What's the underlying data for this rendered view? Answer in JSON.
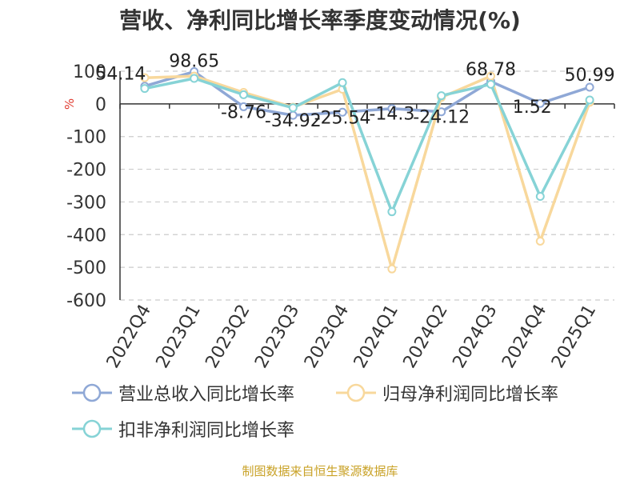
{
  "chart_data": {
    "type": "line",
    "title": "营收、净利同比增长率季度变动情况(%)",
    "ylabel": "%",
    "xlabel": "",
    "categories": [
      "2022Q4",
      "2023Q1",
      "2023Q2",
      "2023Q3",
      "2023Q4",
      "2024Q1",
      "2024Q2",
      "2024Q3",
      "2024Q4",
      "2025Q1"
    ],
    "yticks": [
      "100",
      "0",
      "-100",
      "-200",
      "-300",
      "-400",
      "-500",
      "-600"
    ],
    "ylim": [
      -600,
      100
    ],
    "grid": "horizontal-dashed",
    "legend_position": "bottom",
    "series": [
      {
        "name": "营业总收入同比增长率",
        "color": "#8fa8d6",
        "values": [
          54.14,
          98.65,
          -8.76,
          -34.92,
          -25.54,
          -14.3,
          -24.12,
          68.78,
          1.52,
          50.99
        ],
        "labels": [
          "54.14",
          "98.65",
          "-8.76",
          "-34.92",
          "-25.54",
          "-14.3",
          "-24.12",
          "68.78",
          "1.52",
          "50.99"
        ]
      },
      {
        "name": "归母净利润同比增长率",
        "color": "#f8d89c",
        "values": [
          80,
          85,
          35,
          -10,
          45,
          -505,
          20,
          85,
          -420,
          5
        ]
      },
      {
        "name": "扣非净利润同比增长率",
        "color": "#86d3d6",
        "values": [
          47,
          78,
          28,
          -12,
          65,
          -330,
          25,
          60,
          -283,
          12
        ]
      }
    ]
  },
  "footer": {
    "source": "制图数据来自恒生聚源数据库"
  }
}
